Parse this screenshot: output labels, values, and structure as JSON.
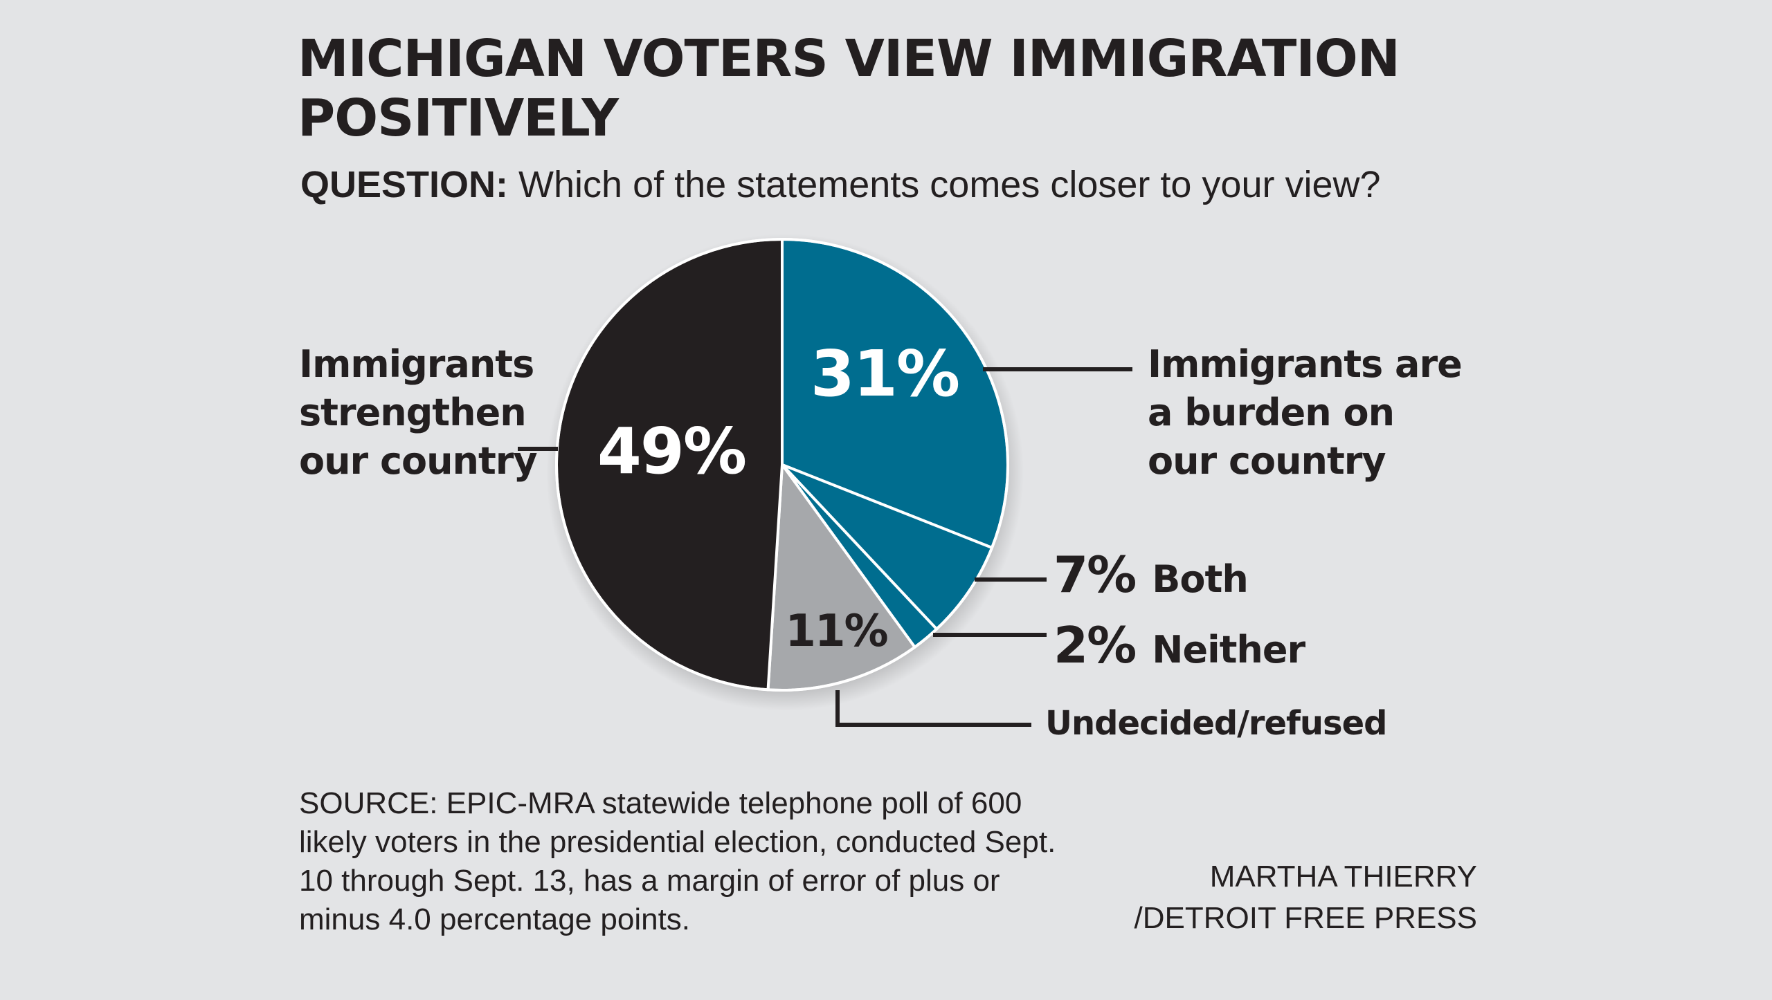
{
  "title": "MICHIGAN VOTERS VIEW IMMIGRATION POSITIVELY",
  "question": {
    "label": "QUESTION:",
    "text": "Which of the statements comes closer to your view?"
  },
  "chart_data": {
    "type": "pie",
    "slices": [
      {
        "label": "Immigrants are a burden on our country",
        "value": 31,
        "value_label": "31%",
        "color": "#006d8f"
      },
      {
        "label": "Both",
        "value": 7,
        "value_label": "7%",
        "color": "#006d8f"
      },
      {
        "label": "Neither",
        "value": 2,
        "value_label": "2%",
        "color": "#006d8f"
      },
      {
        "label": "Undecided/refused",
        "value": 11,
        "value_label": "11%",
        "color": "#a6a8ab"
      },
      {
        "label": "Immigrants strengthen our country",
        "value": 49,
        "value_label": "49%",
        "color": "#231f20"
      }
    ],
    "start_angle_deg": 0,
    "direction": "clockwise"
  },
  "labels": {
    "burden_lines": [
      "Immigrants are",
      "a burden on",
      "our country"
    ],
    "strengthen_lines": [
      "Immigrants",
      "strengthen",
      "our country"
    ]
  },
  "source": "SOURCE: EPIC-MRA statewide telephone poll of 600 likely voters in the presidential election, conducted Sept. 10 through Sept. 13, has a margin of error of plus or minus 4.0 percentage points.",
  "credit": {
    "line1": "MARTHA THIERRY",
    "line2": "/DETROIT FREE PRESS"
  }
}
